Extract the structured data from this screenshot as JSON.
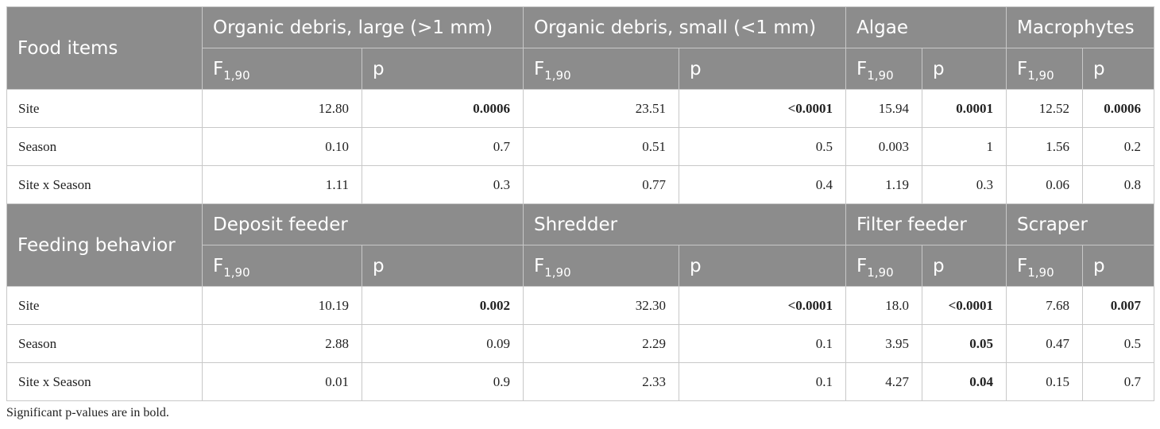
{
  "section1": {
    "title": "Food items",
    "groups": [
      "Organic debris, large (>1 mm)",
      "Organic debris, small (<1 mm)",
      "Algae",
      "Macrophytes"
    ],
    "rows": [
      {
        "label": "Site",
        "values": [
          "12.80",
          "0.0006",
          "23.51",
          "<0.0001",
          "15.94",
          "0.0001",
          "12.52",
          "0.0006"
        ],
        "bold": [
          false,
          true,
          false,
          true,
          false,
          true,
          false,
          true
        ]
      },
      {
        "label": "Season",
        "values": [
          "0.10",
          "0.7",
          "0.51",
          "0.5",
          "0.003",
          "1",
          "1.56",
          "0.2"
        ],
        "bold": [
          false,
          false,
          false,
          false,
          false,
          false,
          false,
          false
        ]
      },
      {
        "label": "Site x Season",
        "values": [
          "1.11",
          "0.3",
          "0.77",
          "0.4",
          "1.19",
          "0.3",
          "0.06",
          "0.8"
        ],
        "bold": [
          false,
          false,
          false,
          false,
          false,
          false,
          false,
          false
        ]
      }
    ]
  },
  "section2": {
    "title": "Feeding behavior",
    "groups": [
      "Deposit feeder",
      "Shredder",
      "Filter feeder",
      "Scraper"
    ],
    "rows": [
      {
        "label": "Site",
        "values": [
          "10.19",
          "0.002",
          "32.30",
          "<0.0001",
          "18.0",
          "<0.0001",
          "7.68",
          "0.007"
        ],
        "bold": [
          false,
          true,
          false,
          true,
          false,
          true,
          false,
          true
        ]
      },
      {
        "label": "Season",
        "values": [
          "2.88",
          "0.09",
          "2.29",
          "0.1",
          "3.95",
          "0.05",
          "0.47",
          "0.5"
        ],
        "bold": [
          false,
          false,
          false,
          false,
          false,
          true,
          false,
          false
        ]
      },
      {
        "label": "Site x Season",
        "values": [
          "0.01",
          "0.9",
          "2.33",
          "0.1",
          "4.27",
          "0.04",
          "0.15",
          "0.7"
        ],
        "bold": [
          false,
          false,
          false,
          false,
          false,
          true,
          false,
          false
        ]
      }
    ]
  },
  "stat": {
    "f_main": "F",
    "f_sub": "1,90",
    "p": "p"
  },
  "footnote": "Significant p-values are in bold."
}
